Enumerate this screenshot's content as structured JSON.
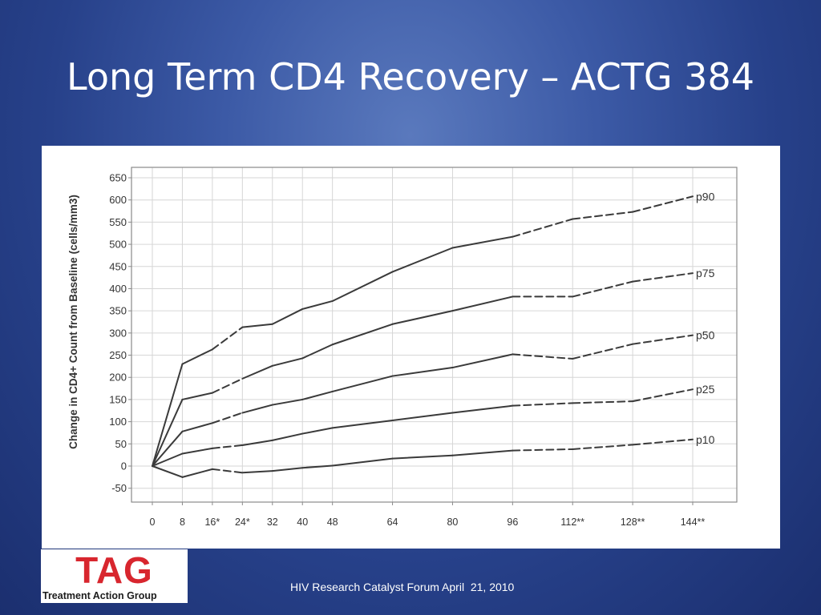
{
  "slide": {
    "title": "Long Term CD4 Recovery – ACTG 384",
    "footer": "HIV Research Catalyst Forum April  21, 2010"
  },
  "logo": {
    "mark": "TAG",
    "name": "Treatment Action Group",
    "brand_color": "#d8262e"
  },
  "chart_data": {
    "type": "line",
    "title": "",
    "xlabel": "",
    "ylabel": "Change in CD4+ Count from Baseline (cells/mm3)",
    "x": [
      0,
      8,
      16,
      24,
      32,
      40,
      48,
      64,
      80,
      96,
      112,
      128,
      144
    ],
    "x_tick_labels": [
      "0",
      "8",
      "16*",
      "24*",
      "32",
      "40",
      "48",
      "64",
      "80",
      "96",
      "112**",
      "128**",
      "144**"
    ],
    "ylim": [
      -65,
      655
    ],
    "y_ticks": [
      -50,
      0,
      50,
      100,
      150,
      200,
      250,
      300,
      350,
      400,
      450,
      500,
      550,
      600,
      650
    ],
    "grid": true,
    "legend": "series labels at right end of each line",
    "line_style": "solid where observed, dashed for weeks 16-24 and after week 96",
    "series": [
      {
        "name": "p90",
        "values": [
          0,
          230,
          263,
          313,
          320,
          354,
          372,
          438,
          492,
          517,
          557,
          573,
          608
        ]
      },
      {
        "name": "p75",
        "values": [
          0,
          150,
          165,
          197,
          226,
          243,
          274,
          320,
          350,
          382,
          382,
          416,
          435
        ]
      },
      {
        "name": "p50",
        "values": [
          0,
          78,
          97,
          120,
          138,
          150,
          168,
          203,
          222,
          252,
          242,
          275,
          295
        ]
      },
      {
        "name": "p25",
        "values": [
          0,
          28,
          40,
          47,
          58,
          73,
          86,
          103,
          120,
          136,
          142,
          146,
          173
        ]
      },
      {
        "name": "p10",
        "values": [
          0,
          -25,
          -7,
          -15,
          -11,
          -4,
          1,
          17,
          24,
          35,
          38,
          48,
          60
        ]
      }
    ]
  }
}
